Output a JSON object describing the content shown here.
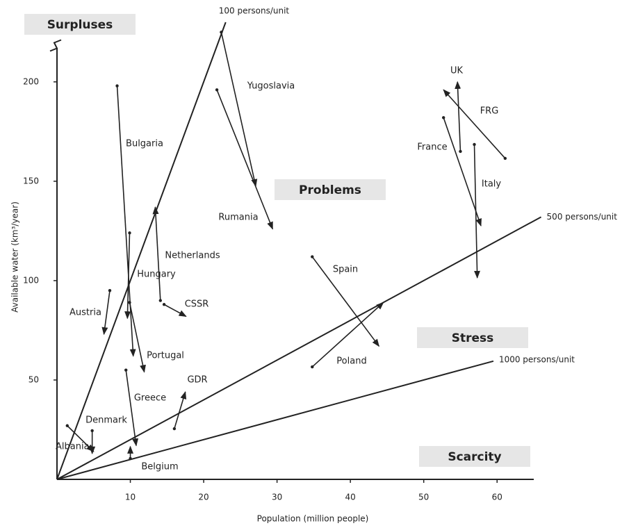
{
  "chart_data": {
    "type": "arrow",
    "x_label": "Population (million people)",
    "y_label": "Available water (km³/year)",
    "xlim": [
      0,
      65
    ],
    "ylim": [
      0,
      230
    ],
    "xticks": [
      10,
      20,
      30,
      40,
      50,
      60
    ],
    "yticks": [
      50,
      100,
      150,
      200
    ],
    "regions": [
      "Surpluses",
      "Problems",
      "Stress",
      "Scarcity"
    ],
    "reference_lines": [
      {
        "name": "100 persons/unit",
        "x": [
          0,
          23
        ],
        "y": [
          0,
          230
        ]
      },
      {
        "name": "500 persons/unit",
        "x": [
          0,
          66
        ],
        "y": [
          0,
          132
        ]
      },
      {
        "name": "1000 persons/unit",
        "x": [
          0,
          59.5
        ],
        "y": [
          0,
          59.5
        ]
      }
    ],
    "arrows": [
      {
        "name": "Bulgaria",
        "x": [
          8.2,
          10.4
        ],
        "y": [
          198,
          62
        ]
      },
      {
        "name": "Yugoslavia",
        "x": [
          22.4,
          27.1
        ],
        "y": [
          225,
          147.5
        ]
      },
      {
        "name": "Rumania",
        "x": [
          21.8,
          29.4
        ],
        "y": [
          196,
          126
        ]
      },
      {
        "name": "UK",
        "x": [
          55.0,
          54.6
        ],
        "y": [
          165,
          200
        ]
      },
      {
        "name": "FRG",
        "x": [
          61.1,
          52.7
        ],
        "y": [
          161.5,
          196
        ]
      },
      {
        "name": "France",
        "x": [
          52.7,
          57.8
        ],
        "y": [
          182,
          127.6
        ]
      },
      {
        "name": "Italy",
        "x": [
          56.9,
          57.3
        ],
        "y": [
          168.5,
          101.4
        ]
      },
      {
        "name": "Spain",
        "x": [
          34.8,
          43.9
        ],
        "y": [
          112,
          67
        ]
      },
      {
        "name": "Poland",
        "x": [
          34.8,
          44.5
        ],
        "y": [
          56.6,
          89
        ]
      },
      {
        "name": "Netherlands",
        "x": [
          14.1,
          13.4
        ],
        "y": [
          90,
          137
        ]
      },
      {
        "name": "Hungary",
        "x": [
          9.9,
          9.6
        ],
        "y": [
          124,
          81
        ]
      },
      {
        "name": "CSSR",
        "x": [
          14.6,
          17.6
        ],
        "y": [
          88,
          82
        ]
      },
      {
        "name": "Austria",
        "x": [
          7.2,
          6.4
        ],
        "y": [
          95,
          73
        ]
      },
      {
        "name": "Portugal",
        "x": [
          9.9,
          11.9
        ],
        "y": [
          89,
          54
        ]
      },
      {
        "name": "Greece",
        "x": [
          9.4,
          10.8
        ],
        "y": [
          55,
          17
        ]
      },
      {
        "name": "GDR",
        "x": [
          16.0,
          17.5
        ],
        "y": [
          25.5,
          44
        ]
      },
      {
        "name": "Denmark",
        "x": [
          4.8,
          4.8
        ],
        "y": [
          24.5,
          13
        ]
      },
      {
        "name": "Albania",
        "x": [
          1.4,
          5.0
        ],
        "y": [
          27,
          14
        ]
      },
      {
        "name": "Belgium",
        "x": [
          10.0,
          10.0
        ],
        "y": [
          10.5,
          16.5
        ]
      }
    ]
  }
}
